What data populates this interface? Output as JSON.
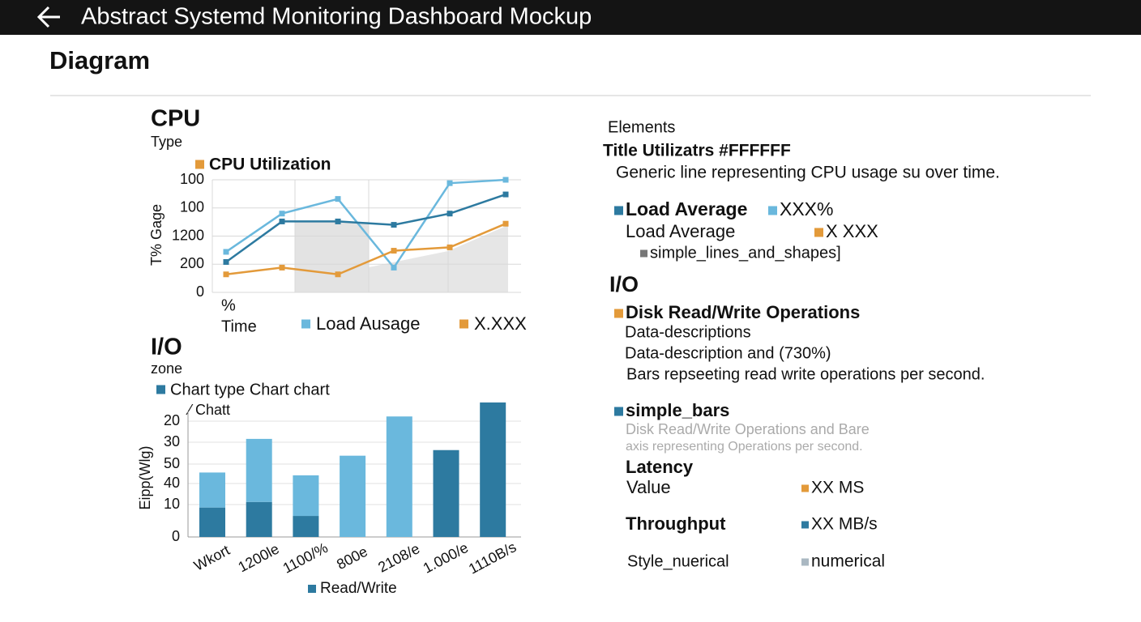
{
  "header": {
    "title": "Abstract Systemd Monitoring Dashboard Mockup"
  },
  "section_title": "Diagram",
  "cpu_chart": {
    "type": "line",
    "title": "CPU",
    "subtitle": "Type",
    "legend_title": {
      "text": "CPU Utilization",
      "color": "#e39a3a"
    },
    "y_label": "T% Gage",
    "x_label_top": "%",
    "x_label": "Time",
    "y_axis_labels": [
      "100",
      "100",
      "1200",
      "200",
      "0"
    ],
    "ylim": [
      0,
      100
    ],
    "series": [
      {
        "name": "Load Ausage",
        "color": "#6ab8dd",
        "values": [
          36,
          70,
          83,
          22,
          97,
          100
        ]
      },
      {
        "name": "X.XXX",
        "color": "#e39a3a",
        "values": [
          16,
          22,
          16,
          37,
          40,
          61
        ]
      },
      {
        "color": "#2d7aa0",
        "values": [
          27,
          63,
          63,
          60,
          70,
          87
        ]
      }
    ]
  },
  "io_chart": {
    "type": "bar",
    "title": "I/O",
    "subtitle": "zone",
    "legend_title": {
      "text": "Chart type Chart chart",
      "color": "#2d7aa0"
    },
    "sub_label": "⁄ Chatt",
    "y_label": "Eipp(Wlg)",
    "y_axis_labels": [
      "20",
      "30",
      "50",
      "40",
      "10",
      "0"
    ],
    "ylim": [
      0,
      100
    ],
    "categories": [
      "Wkort",
      "1200le",
      "1100/%",
      "800e",
      "2108/e",
      "1.000/e",
      "1110B/s"
    ],
    "series": [
      {
        "name": "Read/Write",
        "color": "#2d7aa0",
        "values": [
          21,
          25,
          15,
          0,
          0,
          62,
          96
        ]
      },
      {
        "color": "#6ab8dd",
        "values": [
          25,
          45,
          29,
          58,
          86,
          0,
          0
        ]
      }
    ]
  },
  "right_panel": {
    "items": [
      {
        "text": "Elements"
      },
      {
        "text": "Title Utilizatrs #FFFFFF"
      },
      {
        "text": "Generic line representing CPU usage su over time."
      },
      {
        "text": "Load Average",
        "color": "#2d7aa0"
      },
      {
        "text": "XXX%",
        "color": "#6ab8dd"
      },
      {
        "text": "Load Average"
      },
      {
        "text": "X XXX",
        "color": "#e39a3a"
      },
      {
        "text": "simple_lines_and_shapes]",
        "color": "#777777"
      },
      {
        "text": "I/O"
      },
      {
        "text": "Disk Read/Write Operations",
        "color": "#e39a3a"
      },
      {
        "text": "Data-descriptions"
      },
      {
        "text": "Data-description and (730%)"
      },
      {
        "text": "Bars repseeting read write operations per second."
      },
      {
        "text": "simple_bars",
        "color": "#2d7aa0"
      },
      {
        "text": "Disk Read/Write Operations and Bare"
      },
      {
        "text": "axis representing Operations per second."
      },
      {
        "text": "Latency"
      },
      {
        "text": "Value"
      },
      {
        "text": "XX MS",
        "color": "#e39a3a"
      },
      {
        "text": "Throughput"
      },
      {
        "text": "XX MB/s",
        "color": "#2d7aa0"
      },
      {
        "text": "Style_nuerical"
      },
      {
        "text": "numerical",
        "color": "#aab8c2"
      }
    ]
  }
}
